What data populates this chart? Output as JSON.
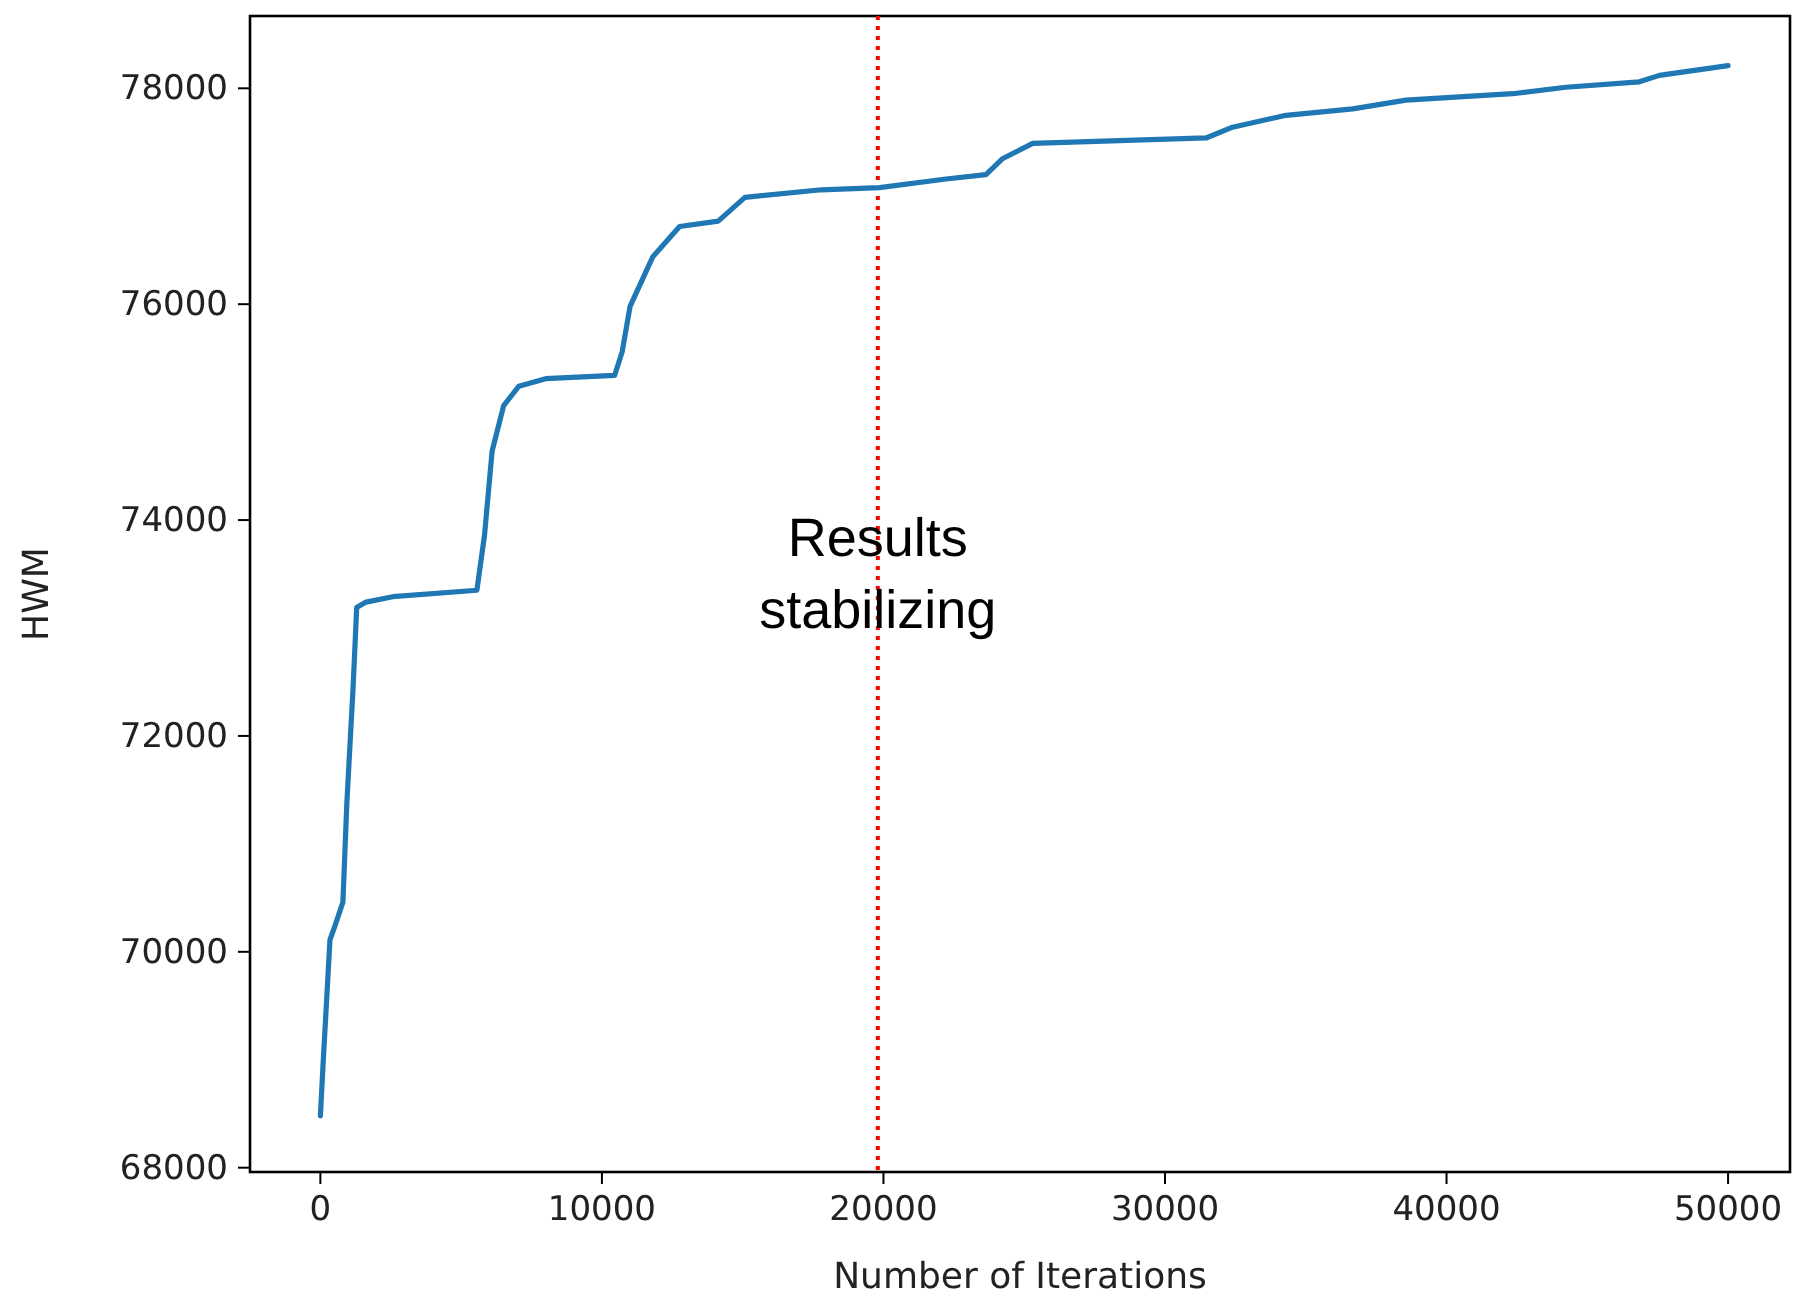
{
  "chart_data": {
    "type": "line",
    "xlabel": "Number of Iterations",
    "ylabel": "HWM",
    "xlim": [
      -2500,
      52200
    ],
    "ylim": [
      67960,
      78670
    ],
    "xticks": [
      0,
      10000,
      20000,
      30000,
      40000,
      50000
    ],
    "yticks": [
      68000,
      70000,
      72000,
      74000,
      76000,
      78000
    ],
    "grid": false,
    "marker": "none",
    "line_style": "solid",
    "x": [
      0,
      100,
      340,
      530,
      800,
      940,
      1160,
      1290,
      1620,
      2570,
      5560,
      5830,
      6100,
      6510,
      7050,
      8000,
      10450,
      10720,
      11000,
      11810,
      12760,
      14130,
      15080,
      17800,
      19860,
      22220,
      23640,
      24240,
      25300,
      31460,
      32400,
      34300,
      36670,
      38560,
      42350,
      44240,
      46850,
      47560,
      50000
    ],
    "series": [
      {
        "color": "#1f77b4",
        "values": [
          68480,
          68980,
          70110,
          70250,
          70460,
          71380,
          72440,
          73190,
          73240,
          73290,
          73350,
          73860,
          74640,
          75060,
          75240,
          75310,
          75340,
          75560,
          75980,
          76440,
          76720,
          76770,
          76990,
          77060,
          77080,
          77160,
          77200,
          77350,
          77490,
          77540,
          77640,
          77750,
          77810,
          77890,
          77950,
          78010,
          78060,
          78120,
          78210
        ]
      }
    ],
    "ref_lines": [
      {
        "axis": "x",
        "value": 19800,
        "color": "#ff0000",
        "line_style": "dotted"
      }
    ],
    "annotations": [
      {
        "text": "Results\nstabilizing",
        "x": 19800,
        "y": 73500
      }
    ]
  }
}
